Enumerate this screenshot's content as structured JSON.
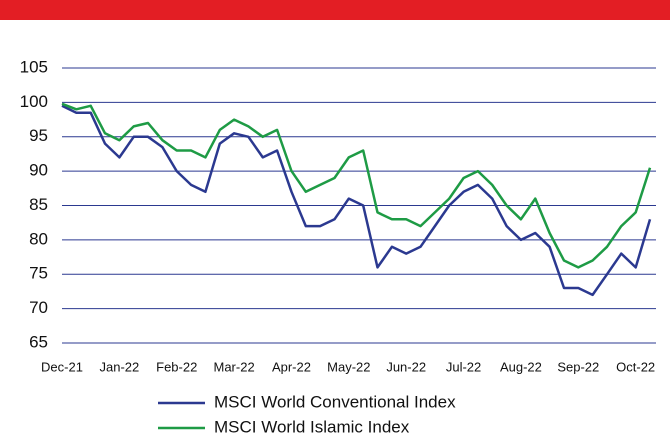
{
  "chart_data": {
    "type": "line",
    "categories": [
      "Dec-21",
      null,
      null,
      null,
      "Jan-22",
      null,
      null,
      null,
      "Feb-22",
      null,
      null,
      null,
      "Mar-22",
      null,
      null,
      null,
      "Apr-22",
      null,
      null,
      null,
      "May-22",
      null,
      null,
      null,
      "Jun-22",
      null,
      null,
      null,
      "Jul-22",
      null,
      null,
      null,
      "Aug-22",
      null,
      null,
      null,
      "Sep-22",
      null,
      null,
      null,
      "Oct-22",
      null
    ],
    "series": [
      {
        "name": "MSCI World Conventional Index",
        "color": "#2b3990",
        "values": [
          99.5,
          98.5,
          98.5,
          94,
          92,
          95,
          95,
          93.5,
          90,
          88,
          87,
          94,
          95.5,
          95,
          92,
          93,
          87,
          82,
          82,
          83,
          86,
          85,
          76,
          79,
          78,
          79,
          82,
          85,
          87,
          88,
          86,
          82,
          80,
          81,
          79,
          73,
          73,
          72,
          75,
          78,
          76,
          83
        ]
      },
      {
        "name": "MSCI World Islamic Index",
        "color": "#1e9b45",
        "values": [
          99.8,
          99,
          99.5,
          95.5,
          94.5,
          96.5,
          97,
          94.5,
          93,
          93,
          92,
          96,
          97.5,
          96.5,
          95,
          96,
          90,
          87,
          88,
          89,
          92,
          93,
          84,
          83,
          83,
          82,
          84,
          86,
          89,
          90,
          88,
          85,
          83,
          86,
          81,
          77,
          76,
          77,
          79,
          82,
          84,
          90.5
        ]
      }
    ],
    "ylim": [
      65,
      105
    ],
    "yticks": [
      65,
      70,
      75,
      80,
      85,
      90,
      95,
      100,
      105
    ],
    "grid": true,
    "legend": "bottom"
  }
}
